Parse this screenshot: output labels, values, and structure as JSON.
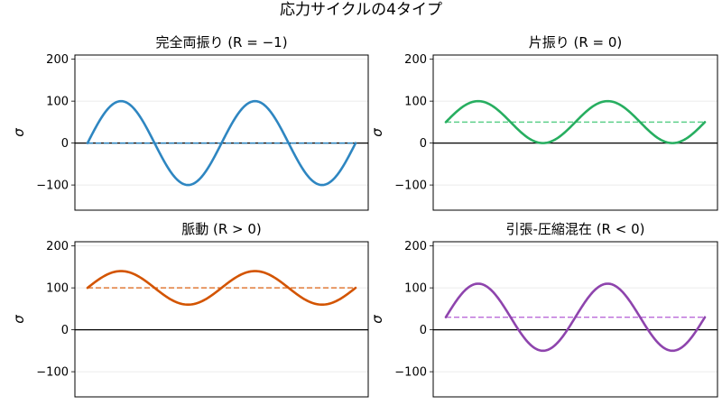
{
  "figure": {
    "suptitle": "応力サイクルの4タイプ"
  },
  "chart_data": [
    {
      "type": "line",
      "title": "完全両振り (R = −1)",
      "ylabel": "σ",
      "ylim": [
        -160,
        210
      ],
      "yticks": [
        -100,
        0,
        100,
        200
      ],
      "ytick_labels": [
        "−100",
        "0",
        "100",
        "200"
      ],
      "grid": "horizontal",
      "series": [
        {
          "kind": "sine",
          "mean": 0,
          "amplitude": 100,
          "cycles": 2,
          "color": "#2e86c1"
        }
      ],
      "mean_line": {
        "value": 0,
        "color": "#2e86c1",
        "style": "dashed"
      },
      "zero_line": {
        "value": 0,
        "color": "#000000"
      }
    },
    {
      "type": "line",
      "title": "片振り (R = 0)",
      "ylabel": "σ",
      "ylim": [
        -160,
        210
      ],
      "yticks": [
        -100,
        0,
        100,
        200
      ],
      "ytick_labels": [
        "−100",
        "0",
        "100",
        "200"
      ],
      "grid": "horizontal",
      "series": [
        {
          "kind": "sine",
          "mean": 50,
          "amplitude": 50,
          "cycles": 2,
          "color": "#27ae60"
        }
      ],
      "mean_line": {
        "value": 50,
        "color": "#5dd08a",
        "style": "dashed"
      },
      "zero_line": {
        "value": 0,
        "color": "#000000"
      }
    },
    {
      "type": "line",
      "title": "脈動 (R > 0)",
      "ylabel": "σ",
      "ylim": [
        -160,
        210
      ],
      "yticks": [
        -100,
        0,
        100,
        200
      ],
      "ytick_labels": [
        "−100",
        "0",
        "100",
        "200"
      ],
      "grid": "horizontal",
      "series": [
        {
          "kind": "sine",
          "mean": 100,
          "amplitude": 40,
          "cycles": 2,
          "color": "#d35400"
        }
      ],
      "mean_line": {
        "value": 100,
        "color": "#e07b39",
        "style": "dashed"
      },
      "zero_line": {
        "value": 0,
        "color": "#000000"
      }
    },
    {
      "type": "line",
      "title": "引張-圧縮混在 (R < 0)",
      "ylabel": "σ",
      "ylim": [
        -160,
        210
      ],
      "yticks": [
        -100,
        0,
        100,
        200
      ],
      "ytick_labels": [
        "−100",
        "0",
        "100",
        "200"
      ],
      "grid": "horizontal",
      "series": [
        {
          "kind": "sine",
          "mean": 30,
          "amplitude": 80,
          "cycles": 2,
          "color": "#8e44ad"
        }
      ],
      "mean_line": {
        "value": 30,
        "color": "#bb6bd9",
        "style": "dashed"
      },
      "zero_line": {
        "value": 0,
        "color": "#000000"
      }
    }
  ]
}
